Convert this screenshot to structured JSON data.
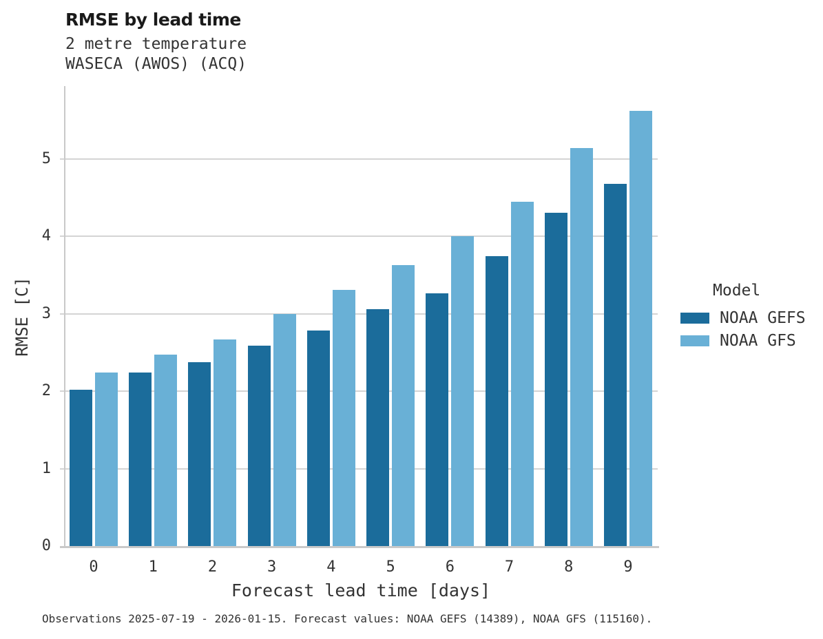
{
  "header": {
    "title": "RMSE by lead time",
    "subtitle_line1": "2 metre temperature",
    "subtitle_line2": "WASECA (AWOS) (ACQ)"
  },
  "legend": {
    "title": "Model"
  },
  "footer": {
    "text": "Observations 2025-07-19 - 2026-01-15. Forecast values: NOAA GEFS (14389), NOAA GFS (115160)."
  },
  "chart_data": {
    "type": "bar",
    "title": "RMSE by lead time",
    "subtitle": "2 metre temperature / WASECA (AWOS) (ACQ)",
    "xlabel": "Forecast lead time [days]",
    "ylabel": "RMSE [C]",
    "categories": [
      "0",
      "1",
      "2",
      "3",
      "4",
      "5",
      "6",
      "7",
      "8",
      "9"
    ],
    "series": [
      {
        "name": "NOAA GEFS",
        "color": "#1b6c9b",
        "values": [
          2.02,
          2.24,
          2.37,
          2.59,
          2.78,
          3.06,
          3.26,
          3.74,
          4.3,
          4.68
        ]
      },
      {
        "name": "NOAA GFS",
        "color": "#69b0d6",
        "values": [
          2.24,
          2.47,
          2.67,
          3.0,
          3.31,
          3.63,
          4.0,
          4.45,
          5.14,
          5.62
        ]
      }
    ],
    "ylim": [
      0,
      5.94
    ],
    "yticks": [
      "0",
      "1",
      "2",
      "3",
      "4",
      "5"
    ],
    "grid": "horizontal",
    "legend_position": "right",
    "legend_title": "Model"
  }
}
